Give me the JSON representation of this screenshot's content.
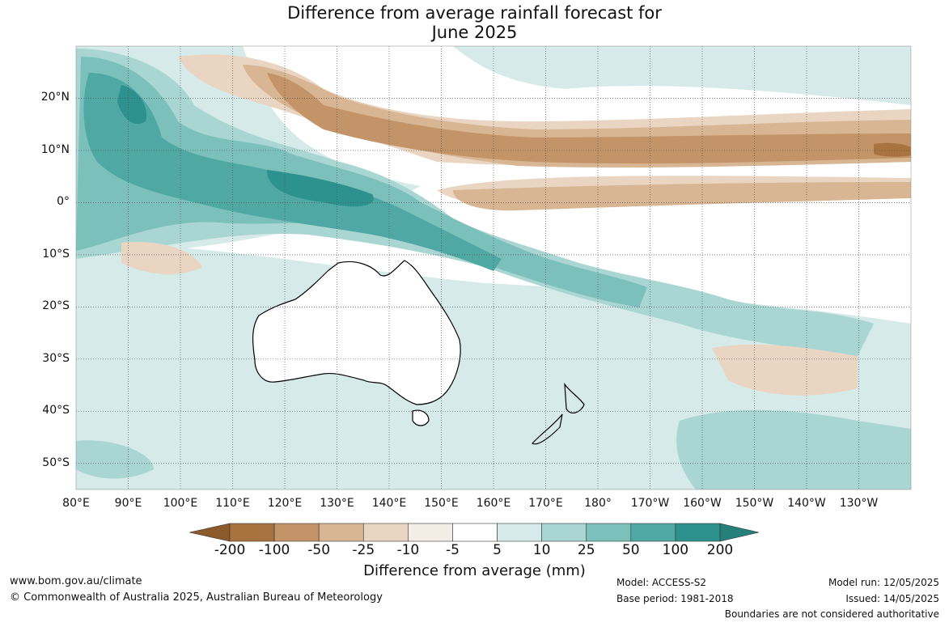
{
  "title_line1": "Difference from average rainfall forecast for",
  "title_line2": "June 2025",
  "map": {
    "lat_labels": [
      "20°N",
      "10°N",
      "0°",
      "10°S",
      "20°S",
      "30°S",
      "40°S",
      "50°S"
    ],
    "lat_values": [
      20,
      10,
      0,
      -10,
      -20,
      -30,
      -40,
      -50
    ],
    "lon_labels": [
      "80°E",
      "90°E",
      "100°E",
      "110°E",
      "120°E",
      "130°E",
      "140°E",
      "150°E",
      "160°E",
      "170°E",
      "180°",
      "170°W",
      "160°W",
      "150°W",
      "140°W",
      "130°W"
    ],
    "lon_values": [
      80,
      90,
      100,
      110,
      120,
      130,
      140,
      150,
      160,
      170,
      180,
      190,
      200,
      210,
      220,
      230
    ],
    "extent": {
      "lon_min": 80,
      "lon_max": 240,
      "lat_min": -55,
      "lat_max": 30
    }
  },
  "colorbar": {
    "ticks": [
      "-200",
      "-100",
      "-50",
      "-25",
      "-10",
      "-5",
      "5",
      "10",
      "25",
      "50",
      "100",
      "200"
    ],
    "colors": [
      "#8c5a2b",
      "#a8733f",
      "#c39467",
      "#d8b593",
      "#e9d5c2",
      "#f3ede6",
      "#ffffff",
      "#d6ebe9",
      "#a9d6d3",
      "#7cc0bc",
      "#4fa8a4",
      "#2d918d",
      "#257f7b"
    ],
    "label": "Difference from average (mm)"
  },
  "footer": {
    "website": "www.bom.gov.au/climate",
    "copyright": "© Commonwealth of Australia 2025, Australian Bureau of Meteorology",
    "model": "Model: ACCESS-S2",
    "base_period": "Base period: 1981-2018",
    "model_run": "Model run: 12/05/2025",
    "issued": "Issued: 14/05/2025",
    "disclaimer": "Boundaries are not considered authoritative"
  }
}
